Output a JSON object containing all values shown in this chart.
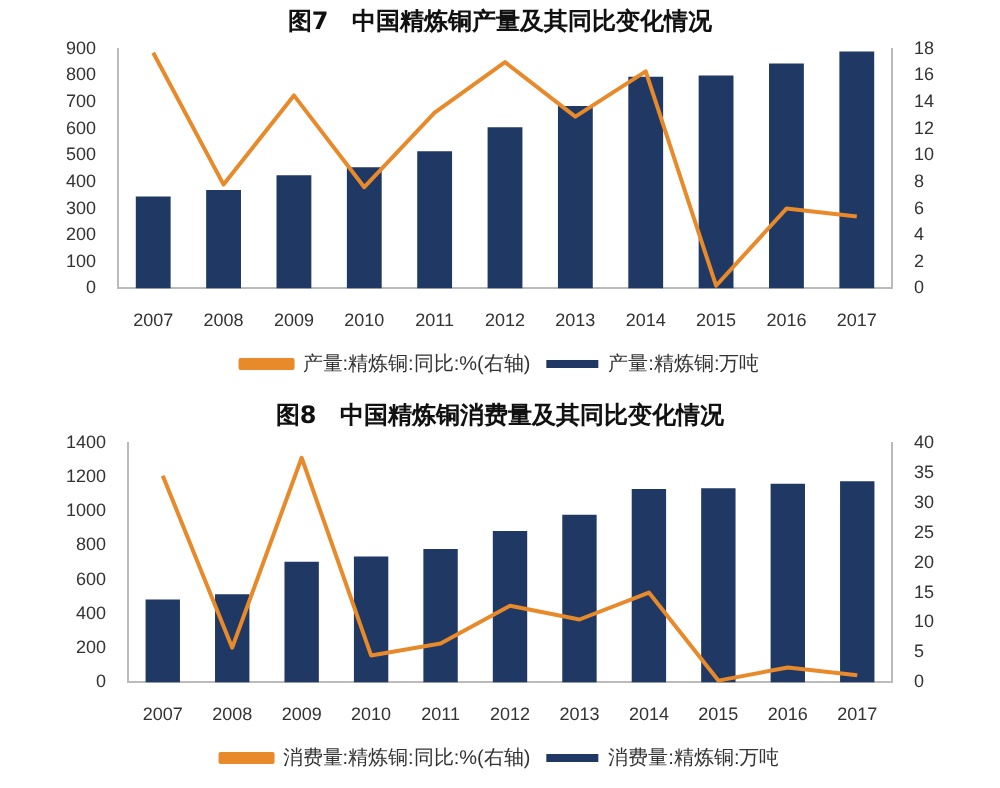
{
  "chart_data": [
    {
      "type": "bar",
      "title": "图7　中国精炼铜产量及其同比变化情况",
      "categories": [
        "2007",
        "2008",
        "2009",
        "2010",
        "2011",
        "2012",
        "2013",
        "2014",
        "2015",
        "2016",
        "2017"
      ],
      "series": [
        {
          "name": "产量:精炼铜:万吨",
          "color": "#1f3864",
          "values": [
            345,
            370,
            425,
            455,
            515,
            605,
            685,
            795,
            800,
            845,
            890
          ]
        },
        {
          "name": "产量:精炼铜:同比:%(右轴)",
          "type": "line",
          "axis": "y2",
          "color": "#e8892a",
          "values": [
            17.7,
            7.8,
            14.5,
            7.6,
            13.2,
            17.0,
            12.9,
            16.3,
            0.2,
            6.0,
            5.4
          ]
        }
      ],
      "ylim": [
        0,
        900
      ],
      "yticks": [
        0,
        100,
        200,
        300,
        400,
        500,
        600,
        700,
        800,
        900
      ],
      "y2lim": [
        0,
        18
      ],
      "y2ticks": [
        0,
        2,
        4,
        6,
        8,
        10,
        12,
        14,
        16,
        18
      ],
      "legend": "bottom",
      "grid": false,
      "marker": "none"
    },
    {
      "type": "bar",
      "title": "图8　中国精炼铜消费量及其同比变化情况",
      "categories": [
        "2007",
        "2008",
        "2009",
        "2010",
        "2011",
        "2012",
        "2013",
        "2014",
        "2015",
        "2016",
        "2017"
      ],
      "series": [
        {
          "name": "消费量:精炼铜:万吨",
          "color": "#1f3864",
          "values": [
            485,
            515,
            705,
            735,
            780,
            885,
            980,
            1130,
            1135,
            1160,
            1175
          ]
        },
        {
          "name": "消费量:精炼铜:同比:%(右轴)",
          "type": "line",
          "axis": "y2",
          "color": "#e8892a",
          "values": [
            34.5,
            5.8,
            37.5,
            4.5,
            6.5,
            12.8,
            10.5,
            15,
            0.3,
            2.5,
            1.2
          ]
        }
      ],
      "ylim": [
        0,
        1400
      ],
      "yticks": [
        0,
        200,
        400,
        600,
        800,
        1000,
        1200,
        1400
      ],
      "y2lim": [
        0,
        40
      ],
      "y2ticks": [
        0,
        5,
        10,
        15,
        20,
        25,
        30,
        35,
        40
      ],
      "legend": "bottom",
      "grid": false,
      "marker": "none"
    }
  ]
}
